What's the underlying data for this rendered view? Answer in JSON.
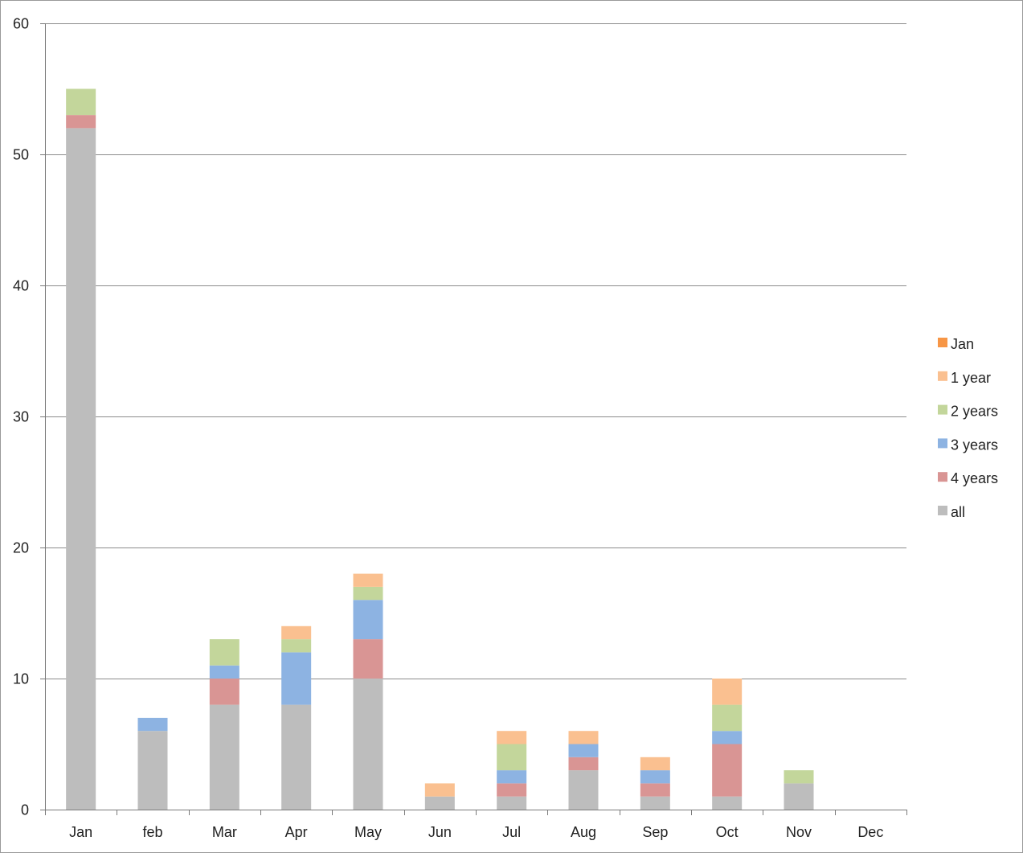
{
  "chart_data": {
    "type": "bar",
    "stacked": true,
    "title": "",
    "xlabel": "",
    "ylabel": "",
    "categories": [
      "Jan",
      "feb",
      "Mar",
      "Apr",
      "May",
      "Jun",
      "Jul",
      "Aug",
      "Sep",
      "Oct",
      "Nov",
      "Dec"
    ],
    "ylim": [
      0,
      60
    ],
    "yticks": [
      0,
      10,
      20,
      30,
      40,
      50,
      60
    ],
    "grid": true,
    "legend_position": "right",
    "series": [
      {
        "name": "all",
        "color": "#bdbdbd",
        "values": [
          52,
          6,
          8,
          8,
          10,
          1,
          1,
          3,
          1,
          1,
          2,
          0
        ]
      },
      {
        "name": "4 years",
        "color": "#d99594",
        "values": [
          1,
          0,
          2,
          0,
          3,
          0,
          1,
          1,
          1,
          4,
          0,
          0
        ]
      },
      {
        "name": "3 years",
        "color": "#8db3e2",
        "values": [
          0,
          1,
          1,
          4,
          3,
          0,
          1,
          1,
          1,
          1,
          0,
          0
        ]
      },
      {
        "name": "2 years",
        "color": "#c3d69b",
        "values": [
          2,
          0,
          2,
          1,
          1,
          0,
          2,
          0,
          0,
          2,
          1,
          0
        ]
      },
      {
        "name": "1 year",
        "color": "#fac090",
        "values": [
          0,
          0,
          0,
          1,
          1,
          1,
          1,
          1,
          1,
          2,
          0,
          0
        ]
      },
      {
        "name": "Jan",
        "color": "#f79646",
        "values": [
          0,
          0,
          0,
          0,
          0,
          0,
          0,
          0,
          0,
          0,
          0,
          0
        ]
      }
    ],
    "legend_order": [
      "Jan",
      "1 year",
      "2 years",
      "3 years",
      "4 years",
      "all"
    ]
  }
}
